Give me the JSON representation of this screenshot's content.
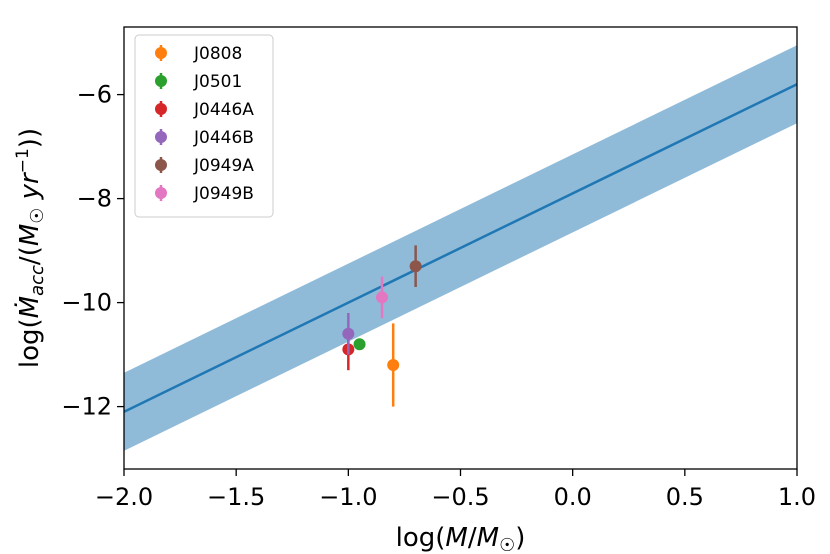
{
  "chart_data": {
    "type": "scatter",
    "xlabel": "log(M/M☉)",
    "ylabel": "log(Ṁacc/(M☉ yr⁻¹))",
    "xlim": [
      -2.0,
      1.0
    ],
    "ylim": [
      -13.2,
      -4.7
    ],
    "x_ticks": [
      -2.0,
      -1.5,
      -1.0,
      -0.5,
      0.0,
      0.5,
      1.0
    ],
    "x_tick_labels": [
      "−2.0",
      "−1.5",
      "−1.0",
      "−0.5",
      "0.0",
      "0.5",
      "1.0"
    ],
    "y_ticks": [
      -12,
      -10,
      -8,
      -6
    ],
    "y_tick_labels": [
      "−12",
      "−10",
      "−8",
      "−6"
    ],
    "fit_line": {
      "x": [
        -2.0,
        1.0
      ],
      "y": [
        -12.1,
        -5.8
      ],
      "color": "#1f77b4"
    },
    "fit_band": {
      "x": [
        -2.0,
        1.0
      ],
      "lower": [
        -12.85,
        -6.55
      ],
      "upper": [
        -11.35,
        -5.05
      ],
      "color": "#1f77b4",
      "alpha": 0.5
    },
    "legend_position": "top-left",
    "series": [
      {
        "name": "J0808",
        "color": "#ff7f0e",
        "x": -0.8,
        "y": -11.2,
        "yerr": 0.8
      },
      {
        "name": "J0501",
        "color": "#2ca02c",
        "x": -0.95,
        "y": -10.8,
        "yerr": 0.0
      },
      {
        "name": "J0446A",
        "color": "#d62728",
        "x": -1.0,
        "y": -10.9,
        "yerr": 0.4
      },
      {
        "name": "J0446B",
        "color": "#9467bd",
        "x": -1.0,
        "y": -10.6,
        "yerr": 0.4
      },
      {
        "name": "J0949A",
        "color": "#8c564b",
        "x": -0.7,
        "y": -9.3,
        "yerr": 0.4
      },
      {
        "name": "J0949B",
        "color": "#e377c2",
        "x": -0.85,
        "y": -9.9,
        "yerr": 0.4
      }
    ]
  }
}
